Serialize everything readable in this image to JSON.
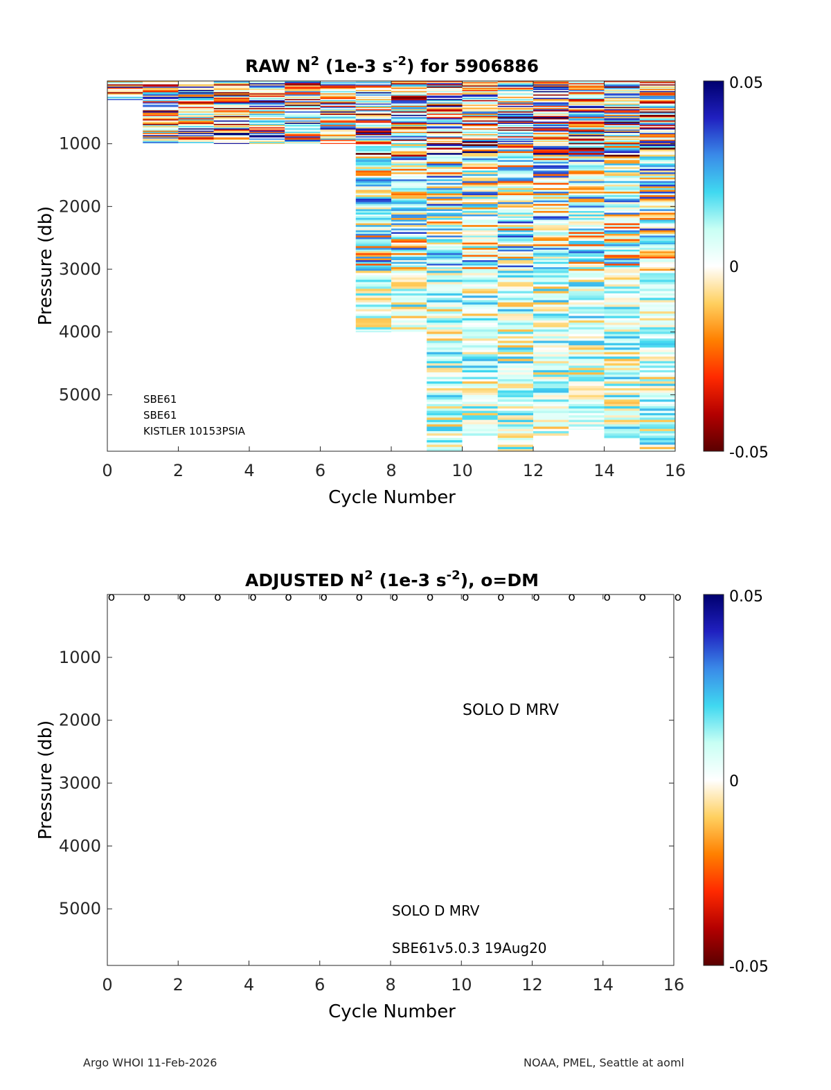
{
  "figure": {
    "footer_left": "Argo WHOI 11-Feb-2026",
    "footer_right": "NOAA, PMEL, Seattle at aoml"
  },
  "colorbar": {
    "tick_labels": [
      "0.05",
      "0",
      "-0.05"
    ],
    "range": [
      -0.05,
      0.05
    ],
    "colormap": [
      "#5a0000",
      "#b30000",
      "#ff2a00",
      "#ff8000",
      "#ffd060",
      "#ffffff",
      "#c8fff4",
      "#40d8f0",
      "#3a8ae8",
      "#2020c0",
      "#00006e"
    ]
  },
  "chart_data": [
    {
      "type": "heatmap",
      "title_prefix": "RAW N",
      "title_sup": "2",
      "title_mid": " (1e-3 s",
      "title_sup2": "-2",
      "title_suffix": ") for 5906886",
      "xlabel": "Cycle Number",
      "ylabel": "Pressure (db)",
      "xlim": [
        0,
        16
      ],
      "ylim": [
        5900,
        0
      ],
      "x_tick_labels": [
        "0",
        "2",
        "4",
        "6",
        "8",
        "10",
        "12",
        "14",
        "16"
      ],
      "y_tick_labels": [
        "1000",
        "2000",
        "3000",
        "4000",
        "5000"
      ],
      "clim": [
        -0.05,
        0.05
      ],
      "profiles": [
        {
          "cycle": 0,
          "max_pressure": 300
        },
        {
          "cycle": 1,
          "max_pressure": 1000
        },
        {
          "cycle": 2,
          "max_pressure": 1000
        },
        {
          "cycle": 3,
          "max_pressure": 1000
        },
        {
          "cycle": 4,
          "max_pressure": 1000
        },
        {
          "cycle": 5,
          "max_pressure": 1000
        },
        {
          "cycle": 6,
          "max_pressure": 1000
        },
        {
          "cycle": 7,
          "max_pressure": 4000
        },
        {
          "cycle": 8,
          "max_pressure": 4000
        },
        {
          "cycle": 9,
          "max_pressure": 5900
        },
        {
          "cycle": 10,
          "max_pressure": 5650
        },
        {
          "cycle": 11,
          "max_pressure": 5900
        },
        {
          "cycle": 12,
          "max_pressure": 5650
        },
        {
          "cycle": 13,
          "max_pressure": 5550
        },
        {
          "cycle": 14,
          "max_pressure": 5700
        },
        {
          "cycle": 15,
          "max_pressure": 5900
        }
      ],
      "annotations": [
        "SBE61",
        "SBE61",
        "KISTLER 10153PSIA"
      ]
    },
    {
      "type": "heatmap",
      "title_prefix": "ADJUSTED N",
      "title_sup": "2",
      "title_mid": " (1e-3 s",
      "title_sup2": "-2",
      "title_suffix": "), o=DM",
      "xlabel": "Cycle Number",
      "ylabel": "Pressure (db)",
      "xlim": [
        0,
        16
      ],
      "ylim": [
        5900,
        0
      ],
      "x_tick_labels": [
        "0",
        "2",
        "4",
        "6",
        "8",
        "10",
        "12",
        "14",
        "16"
      ],
      "y_tick_labels": [
        "1000",
        "2000",
        "3000",
        "4000",
        "5000"
      ],
      "clim": [
        -0.05,
        0.05
      ],
      "dm_marker": "o",
      "dm_cycles": [
        0,
        1,
        2,
        3,
        4,
        5,
        6,
        7,
        8,
        9,
        10,
        11,
        12,
        13,
        14,
        15,
        16
      ],
      "annotations": [
        "SOLO D MRV",
        "SOLO D MRV",
        "SBE61v5.0.3 19Aug20"
      ]
    }
  ]
}
